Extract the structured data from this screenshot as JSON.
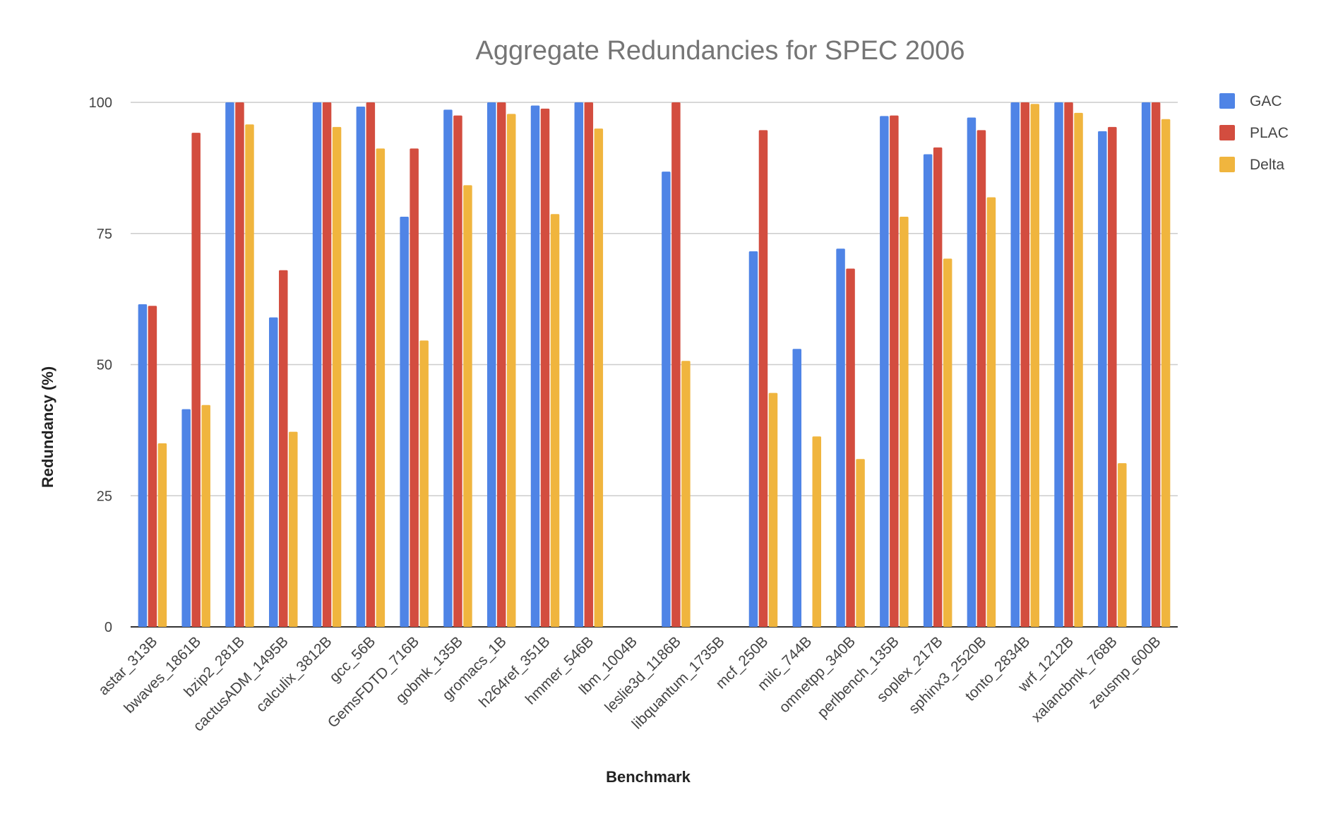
{
  "chart_data": {
    "type": "bar",
    "title": "Aggregate Redundancies for SPEC 2006",
    "xlabel": "Benchmark",
    "ylabel": "Redundancy (%)",
    "ylim": [
      0,
      100
    ],
    "yticks": [
      0,
      25,
      50,
      75,
      100
    ],
    "grid": true,
    "legend_position": "right",
    "categories": [
      "astar_313B",
      "bwaves_1861B",
      "bzip2_281B",
      "cactusADM_1495B",
      "calculix_3812B",
      "gcc_56B",
      "GemsFDTD_716B",
      "gobmk_135B",
      "gromacs_1B",
      "h264ref_351B",
      "hmmer_546B",
      "lbm_1004B",
      "leslie3d_1186B",
      "libquantum_1735B",
      "mcf_250B",
      "milc_744B",
      "omnetpp_340B",
      "perlbench_135B",
      "soplex_217B",
      "sphinx3_2520B",
      "tonto_2834B",
      "wrf_1212B",
      "xalancbmk_768B",
      "zeusmp_600B"
    ],
    "series": [
      {
        "name": "GAC",
        "color": "#4f84e6",
        "values": [
          61.5,
          41.5,
          100,
          59,
          100,
          99.2,
          78.2,
          98.6,
          100,
          99.4,
          100,
          0,
          86.8,
          0,
          71.6,
          53,
          72.1,
          97.4,
          90.1,
          97.1,
          100,
          100,
          94.5,
          100
        ]
      },
      {
        "name": "PLAC",
        "color": "#d34d3f",
        "values": [
          61.2,
          94.2,
          100,
          68,
          100,
          100,
          91.2,
          97.5,
          100,
          98.8,
          100,
          0,
          100,
          0,
          94.7,
          0,
          68.3,
          97.5,
          91.4,
          94.7,
          100,
          100,
          95.3,
          100
        ]
      },
      {
        "name": "Delta",
        "color": "#f0b53e",
        "values": [
          35,
          42.3,
          95.8,
          37.2,
          95.3,
          91.2,
          54.6,
          84.2,
          97.8,
          78.7,
          95,
          0,
          50.7,
          0,
          44.6,
          36.3,
          32,
          78.2,
          70.2,
          81.9,
          99.7,
          98,
          31.2,
          96.8
        ]
      }
    ]
  }
}
